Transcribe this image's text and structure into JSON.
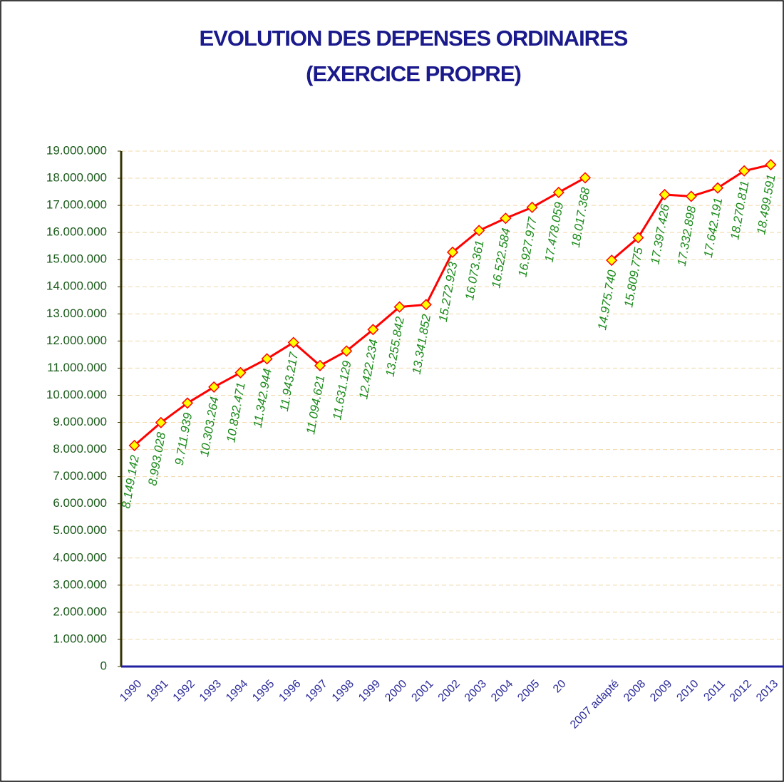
{
  "chart_data": {
    "type": "line",
    "title": [
      "EVOLUTION DES DEPENSES ORDINAIRES",
      "(EXERCICE PROPRE)"
    ],
    "categories": [
      "1990",
      "1991",
      "1992",
      "1993",
      "1994",
      "1995",
      "1996",
      "1997",
      "1998",
      "1999",
      "2000",
      "2001",
      "2002",
      "2003",
      "2004",
      "2005",
      "20",
      null,
      "2007 adapté",
      "2008",
      "2009",
      "2010",
      "2011",
      "2012",
      "2013"
    ],
    "series": [
      {
        "color": "#ff0000",
        "marker_color": "#ffff00",
        "values": [
          8149142,
          8993028,
          9711939,
          10303264,
          10832471,
          11342944,
          11943217,
          11094621,
          11631129,
          12422234,
          13255842,
          13341852,
          15272923,
          16073361,
          16522584,
          16927977,
          17478059,
          18017368,
          null,
          null,
          null,
          null,
          null,
          null,
          null
        ],
        "value_labels": [
          "8.149.142",
          "8.993.028",
          "9.711.939",
          "10.303.264",
          "10.832.471",
          "11.342.944",
          "11.943.217",
          "11.094.621",
          "11.631.129",
          "12.422.234",
          "13.255.842",
          "13.341.852",
          "15.272.923",
          "16.073.361",
          "16.522.584",
          "16.927.977",
          "17.478.059",
          "18.017.368",
          null,
          null,
          null,
          null,
          null,
          null,
          null
        ]
      },
      {
        "color": "#ff0000",
        "marker_color": "#ffff00",
        "values": [
          null,
          null,
          null,
          null,
          null,
          null,
          null,
          null,
          null,
          null,
          null,
          null,
          null,
          null,
          null,
          null,
          null,
          null,
          14975740,
          15809775,
          17397426,
          17332898,
          17642191,
          18270811,
          18499591
        ],
        "value_labels": [
          null,
          null,
          null,
          null,
          null,
          null,
          null,
          null,
          null,
          null,
          null,
          null,
          null,
          null,
          null,
          null,
          null,
          null,
          "14.975.740",
          "15.809.775",
          "17.397.426",
          "17.332.898",
          "17.642.191",
          "18.270.811",
          "18.499.591"
        ]
      }
    ],
    "ylim": [
      0,
      19000000
    ],
    "yticks": [
      0,
      {
        "value": 1000000,
        "label": "1.000.000"
      },
      {
        "value": 2000000,
        "label": "2.000.000"
      },
      {
        "value": 3000000,
        "label": "3.000.000"
      },
      {
        "value": 4000000,
        "label": "4.000.000"
      },
      {
        "value": 5000000,
        "label": "5.000.000"
      },
      {
        "value": 6000000,
        "label": "6.000.000"
      },
      {
        "value": 7000000,
        "label": "7.000.000"
      },
      {
        "value": 8000000,
        "label": "8.000.000"
      },
      {
        "value": 9000000,
        "label": "9.000.000"
      },
      {
        "value": 10000000,
        "label": "10.000.000"
      },
      {
        "value": 11000000,
        "label": "11.000.000"
      },
      {
        "value": 12000000,
        "label": "12.000.000"
      },
      {
        "value": 13000000,
        "label": "13.000.000"
      },
      {
        "value": 14000000,
        "label": "14.000.000"
      },
      {
        "value": 15000000,
        "label": "15.000.000"
      },
      {
        "value": 16000000,
        "label": "16.000.000"
      },
      {
        "value": 17000000,
        "label": "17.000.000"
      },
      {
        "value": 18000000,
        "label": "18.000.000"
      },
      {
        "value": 19000000,
        "label": "19.000.000"
      }
    ],
    "grid": true
  }
}
